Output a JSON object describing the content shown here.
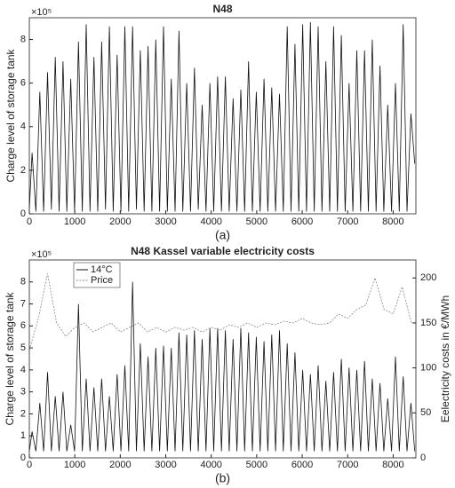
{
  "chart_data": [
    {
      "type": "line",
      "title": "N48",
      "caption": "(a)",
      "y_label": "Charge level of storage tank",
      "y_scale_label": "×10⁵",
      "xlim": [
        0,
        8500
      ],
      "ylim": [
        0,
        9
      ],
      "xticks": [
        0,
        1000,
        2000,
        3000,
        4000,
        5000,
        6000,
        7000,
        8000
      ],
      "yticks": [
        0,
        2,
        4,
        6,
        8
      ],
      "x": [
        0,
        60,
        145,
        230,
        315,
        400,
        485,
        570,
        655,
        740,
        825,
        910,
        995,
        1080,
        1165,
        1250,
        1335,
        1420,
        1505,
        1590,
        1675,
        1760,
        1845,
        1930,
        2015,
        2100,
        2185,
        2270,
        2355,
        2440,
        2525,
        2610,
        2695,
        2780,
        2865,
        2950,
        3035,
        3120,
        3205,
        3290,
        3375,
        3460,
        3545,
        3630,
        3715,
        3800,
        3885,
        3970,
        4055,
        4140,
        4225,
        4310,
        4395,
        4480,
        4565,
        4650,
        4735,
        4820,
        4905,
        4990,
        5075,
        5160,
        5245,
        5330,
        5415,
        5500,
        5585,
        5670,
        5755,
        5840,
        5925,
        6010,
        6095,
        6180,
        6265,
        6350,
        6435,
        6520,
        6605,
        6690,
        6775,
        6860,
        6945,
        7030,
        7115,
        7200,
        7285,
        7370,
        7455,
        7540,
        7625,
        7710,
        7795,
        7880,
        7965,
        8050,
        8135,
        8220,
        8305,
        8390,
        8475
      ],
      "series": [
        {
          "color": "#111111",
          "values": [
            0.2,
            2.8,
            0.1,
            5.6,
            0.1,
            6.5,
            0.2,
            7.2,
            0.1,
            7.0,
            0.1,
            6.2,
            0.1,
            7.9,
            0.1,
            8.7,
            0.1,
            7.2,
            0.1,
            7.9,
            0.2,
            8.6,
            0.1,
            7.3,
            0.1,
            8.6,
            0.1,
            8.6,
            0.2,
            7.5,
            0.1,
            7.7,
            0.1,
            8.0,
            0.1,
            8.6,
            0.1,
            6.2,
            0.1,
            8.4,
            0.1,
            6.0,
            0.1,
            6.7,
            0.2,
            5.0,
            0.1,
            6.0,
            0.1,
            6.3,
            0.1,
            6.3,
            0.1,
            5.3,
            0.1,
            5.7,
            0.1,
            7.0,
            0.1,
            5.6,
            0.1,
            6.2,
            0.1,
            5.8,
            0.1,
            5.5,
            0.1,
            8.6,
            0.1,
            7.8,
            0.1,
            8.7,
            0.1,
            8.8,
            0.1,
            8.6,
            0.1,
            7.0,
            0.1,
            8.6,
            0.1,
            8.2,
            0.1,
            6.0,
            0.1,
            7.5,
            0.1,
            7.5,
            0.1,
            8.0,
            0.1,
            6.8,
            0.1,
            5.0,
            0.1,
            6.0,
            0.1,
            8.7,
            0.1,
            4.6,
            2.3
          ]
        }
      ]
    },
    {
      "type": "line",
      "title": "N48 Kassel variable electricity costs",
      "caption": "(b)",
      "y_label": "Charge level of storage  tank",
      "y_scale_label": "×10⁵",
      "y2_label": "Eelectricity costs in €/MWh",
      "xlim": [
        0,
        8500
      ],
      "ylim": [
        0,
        9
      ],
      "y2lim": [
        0,
        220
      ],
      "xticks": [
        0,
        1000,
        2000,
        3000,
        4000,
        5000,
        6000,
        7000,
        8000
      ],
      "yticks": [
        0,
        1,
        2,
        3,
        4,
        5,
        6,
        7,
        8
      ],
      "y2ticks": [
        0,
        50,
        100,
        150,
        200
      ],
      "legend": "upper left",
      "x": [
        0,
        60,
        145,
        230,
        315,
        400,
        485,
        570,
        655,
        740,
        825,
        910,
        995,
        1080,
        1165,
        1250,
        1335,
        1420,
        1505,
        1590,
        1675,
        1760,
        1845,
        1930,
        2015,
        2100,
        2185,
        2270,
        2355,
        2440,
        2525,
        2610,
        2695,
        2780,
        2865,
        2950,
        3035,
        3120,
        3205,
        3290,
        3375,
        3460,
        3545,
        3630,
        3715,
        3800,
        3885,
        3970,
        4055,
        4140,
        4225,
        4310,
        4395,
        4480,
        4565,
        4650,
        4735,
        4820,
        4905,
        4990,
        5075,
        5160,
        5245,
        5330,
        5415,
        5500,
        5585,
        5670,
        5755,
        5840,
        5925,
        6010,
        6095,
        6180,
        6265,
        6350,
        6435,
        6520,
        6605,
        6690,
        6775,
        6860,
        6945,
        7030,
        7115,
        7200,
        7285,
        7370,
        7455,
        7540,
        7625,
        7710,
        7795,
        7880,
        7965,
        8050,
        8135,
        8220,
        8305,
        8390,
        8475
      ],
      "series": [
        {
          "name": "14°C",
          "color": "#111111",
          "values": [
            0.3,
            1.2,
            0.3,
            2.5,
            0.3,
            3.9,
            0.3,
            2.8,
            0.3,
            3.0,
            0.3,
            1.5,
            0.3,
            7.0,
            0.3,
            3.6,
            0.3,
            3.2,
            0.3,
            3.6,
            0.3,
            2.8,
            0.3,
            3.8,
            0.3,
            4.2,
            0.3,
            8.0,
            0.3,
            5.2,
            0.3,
            4.6,
            0.3,
            5.0,
            0.3,
            5.1,
            0.3,
            5.0,
            0.3,
            5.7,
            0.3,
            5.6,
            0.3,
            5.8,
            0.3,
            5.4,
            0.3,
            5.9,
            0.3,
            5.9,
            0.3,
            5.8,
            0.3,
            5.4,
            0.3,
            5.9,
            0.3,
            5.7,
            0.3,
            5.5,
            0.3,
            5.3,
            0.3,
            5.6,
            0.3,
            5.8,
            0.3,
            5.2,
            0.3,
            4.8,
            0.3,
            4.0,
            0.3,
            3.8,
            0.3,
            4.2,
            0.3,
            3.5,
            0.3,
            3.9,
            0.3,
            4.5,
            0.3,
            4.1,
            0.3,
            4.0,
            0.3,
            4.4,
            0.3,
            3.6,
            0.3,
            3.4,
            0.3,
            2.7,
            0.3,
            4.6,
            0.3,
            3.7,
            0.3,
            2.5,
            0.3
          ]
        },
        {
          "name": "Price",
          "color": "#888888",
          "dashed": true,
          "axis": "y2",
          "x": [
            0,
            200,
            400,
            600,
            800,
            1000,
            1200,
            1400,
            1600,
            1800,
            2000,
            2200,
            2400,
            2600,
            2800,
            3000,
            3200,
            3400,
            3600,
            3800,
            4000,
            4200,
            4400,
            4600,
            4800,
            5000,
            5200,
            5400,
            5600,
            5800,
            6000,
            6200,
            6400,
            6600,
            6800,
            7000,
            7200,
            7400,
            7600,
            7800,
            8000,
            8200,
            8400
          ],
          "values": [
            120,
            155,
            205,
            150,
            135,
            145,
            150,
            140,
            145,
            150,
            140,
            145,
            150,
            140,
            145,
            140,
            145,
            142,
            145,
            140,
            145,
            142,
            148,
            145,
            150,
            145,
            150,
            148,
            152,
            150,
            155,
            150,
            148,
            150,
            160,
            155,
            165,
            170,
            200,
            165,
            160,
            190,
            150
          ]
        }
      ]
    }
  ]
}
